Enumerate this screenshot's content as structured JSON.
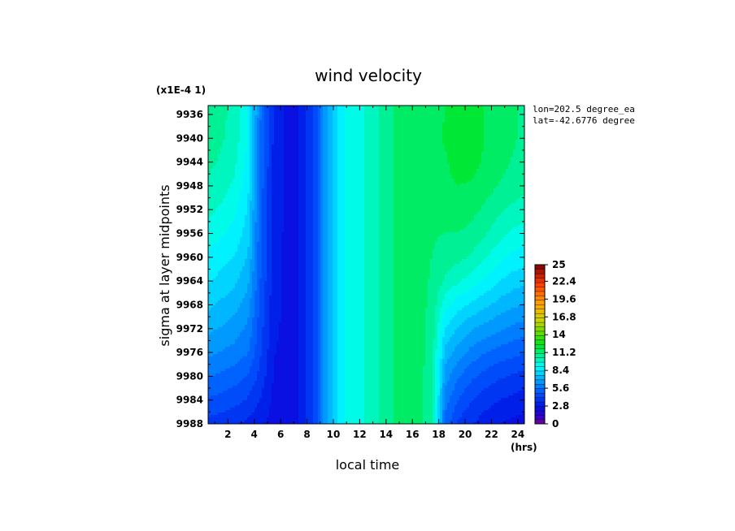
{
  "chart_data": {
    "type": "heatmap",
    "title": "wind velocity",
    "xlabel": "local time",
    "ylabel": "sigma at layer midpoints",
    "x_unit": "(hrs)",
    "y_multiplier": "(x1E-4 1)",
    "annotations": [
      "lon=202.5 degree_ea",
      "lat=-42.6776 degree"
    ],
    "x_ticks": [
      "2",
      "4",
      "6",
      "8",
      "10",
      "12",
      "14",
      "16",
      "18",
      "20",
      "22",
      "24"
    ],
    "y_ticks": [
      "9936",
      "9940",
      "9944",
      "9948",
      "9952",
      "9956",
      "9960",
      "9964",
      "9968",
      "9972",
      "9976",
      "9980",
      "9984",
      "9988"
    ],
    "xlim": [
      0.5,
      24.5
    ],
    "ylim": [
      9988,
      9934.5
    ],
    "colorbar": {
      "ticks": [
        "25",
        "22.4",
        "19.6",
        "16.8",
        "14",
        "11.2",
        "8.4",
        "5.6",
        "2.8",
        "0"
      ],
      "range": [
        0,
        25
      ],
      "levels": 36
    },
    "grid_x": [
      0.5,
      1.5,
      2.5,
      3.5,
      4.5,
      5.5,
      6.5,
      7.5,
      8.5,
      9.5,
      10.5,
      11.5,
      12.5,
      13.5,
      14.5,
      15.5,
      16.5,
      17.5,
      18.5,
      19.5,
      20.5,
      21.5,
      22.5,
      23.5,
      24.5
    ],
    "grid_y": [
      9934.5,
      9936,
      9940,
      9944,
      9948,
      9952,
      9956,
      9960,
      9964,
      9968,
      9972,
      9976,
      9980,
      9984,
      9988
    ],
    "z": [
      [
        11.0,
        10.6,
        10.2,
        9.2,
        5.5,
        3.3,
        2.6,
        2.8,
        4.2,
        6.8,
        8.8,
        9.4,
        9.8,
        10.4,
        11.1,
        11.4,
        11.4,
        11.6,
        11.8,
        12.0,
        12.0,
        11.8,
        11.5,
        11.2,
        11.0
      ],
      [
        11.0,
        10.6,
        10.2,
        9.2,
        5.5,
        3.3,
        2.6,
        2.8,
        4.2,
        6.8,
        8.8,
        9.4,
        9.8,
        10.4,
        11.1,
        11.4,
        11.4,
        11.6,
        11.8,
        12.0,
        12.0,
        11.8,
        11.5,
        11.2,
        11.0
      ],
      [
        10.8,
        10.5,
        10.1,
        9.0,
        5.4,
        3.3,
        2.6,
        2.8,
        4.2,
        6.8,
        8.8,
        9.4,
        9.8,
        10.4,
        11.1,
        11.4,
        11.4,
        11.6,
        11.9,
        12.1,
        12.1,
        11.8,
        11.5,
        11.2,
        11.0
      ],
      [
        10.6,
        10.3,
        9.9,
        8.8,
        5.3,
        3.2,
        2.6,
        2.8,
        4.2,
        6.8,
        8.8,
        9.4,
        9.8,
        10.4,
        11.1,
        11.4,
        11.4,
        11.5,
        11.7,
        12.2,
        12.1,
        11.7,
        11.4,
        11.1,
        10.9
      ],
      [
        10.3,
        10.0,
        9.6,
        8.6,
        5.2,
        3.2,
        2.6,
        2.8,
        4.2,
        6.8,
        8.8,
        9.4,
        9.8,
        10.4,
        11.1,
        11.4,
        11.4,
        11.4,
        11.6,
        11.8,
        11.7,
        11.4,
        11.1,
        10.8,
        10.6
      ],
      [
        9.9,
        9.6,
        9.2,
        8.3,
        5.1,
        3.2,
        2.6,
        2.8,
        4.2,
        6.8,
        8.8,
        9.4,
        9.8,
        10.4,
        11.1,
        11.4,
        11.4,
        11.3,
        11.4,
        11.5,
        11.3,
        11.0,
        10.6,
        10.3,
        10.1
      ],
      [
        9.4,
        9.1,
        8.8,
        8.0,
        5.0,
        3.1,
        2.6,
        2.8,
        4.2,
        6.8,
        8.8,
        9.4,
        9.8,
        10.4,
        11.1,
        11.4,
        11.4,
        11.2,
        11.1,
        11.1,
        10.9,
        10.5,
        10.0,
        9.6,
        9.4
      ],
      [
        8.9,
        8.6,
        8.3,
        7.6,
        4.9,
        3.1,
        2.6,
        2.8,
        4.2,
        6.8,
        8.8,
        9.4,
        9.8,
        10.4,
        11.1,
        11.4,
        11.4,
        11.1,
        10.8,
        10.6,
        10.3,
        9.8,
        9.3,
        8.9,
        8.7
      ],
      [
        8.4,
        8.1,
        7.8,
        7.1,
        4.8,
        3.0,
        2.6,
        2.8,
        4.2,
        6.8,
        8.8,
        9.4,
        9.8,
        10.4,
        11.1,
        11.4,
        11.4,
        11.0,
        10.3,
        9.8,
        9.4,
        8.9,
        8.4,
        8.0,
        7.8
      ],
      [
        7.8,
        7.5,
        7.2,
        6.6,
        4.6,
        3.0,
        2.6,
        2.8,
        4.2,
        6.8,
        8.8,
        9.4,
        9.8,
        10.4,
        11.1,
        11.4,
        11.4,
        10.9,
        9.3,
        8.6,
        8.2,
        7.8,
        7.4,
        7.1,
        6.9
      ],
      [
        7.1,
        6.9,
        6.6,
        6.1,
        4.4,
        2.9,
        2.6,
        2.8,
        4.2,
        6.8,
        8.8,
        9.4,
        9.8,
        10.4,
        11.1,
        11.4,
        11.4,
        10.8,
        8.3,
        7.5,
        7.0,
        6.7,
        6.4,
        6.1,
        5.9
      ],
      [
        6.4,
        6.2,
        6.0,
        5.6,
        4.2,
        2.8,
        2.6,
        2.8,
        4.2,
        6.8,
        8.8,
        9.4,
        9.8,
        10.4,
        11.1,
        11.4,
        11.4,
        10.7,
        7.4,
        6.6,
        6.0,
        5.6,
        5.3,
        5.1,
        4.9
      ],
      [
        5.6,
        5.4,
        5.2,
        4.8,
        3.9,
        2.7,
        2.6,
        2.8,
        4.2,
        6.8,
        8.8,
        9.4,
        9.8,
        10.4,
        11.1,
        11.4,
        11.4,
        10.6,
        6.6,
        5.6,
        5.0,
        4.6,
        4.3,
        4.1,
        3.9
      ],
      [
        4.8,
        4.6,
        4.4,
        4.1,
        3.4,
        2.6,
        2.6,
        2.8,
        4.2,
        6.8,
        8.8,
        9.4,
        9.8,
        10.4,
        11.1,
        11.4,
        11.4,
        10.5,
        5.9,
        4.8,
        4.2,
        3.8,
        3.5,
        3.3,
        3.1
      ],
      [
        3.9,
        3.8,
        3.6,
        3.3,
        2.9,
        2.5,
        2.6,
        2.8,
        4.2,
        6.8,
        8.8,
        9.4,
        9.8,
        10.4,
        11.1,
        11.4,
        11.4,
        10.4,
        5.2,
        4.0,
        3.5,
        3.1,
        2.8,
        2.6,
        2.5
      ]
    ]
  }
}
